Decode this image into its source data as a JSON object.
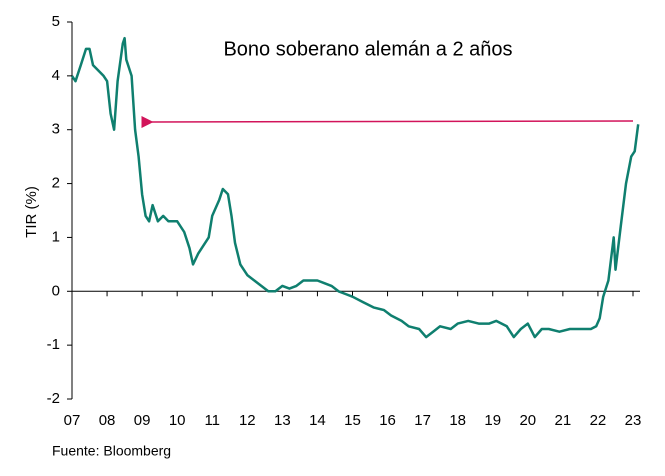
{
  "chart_data": {
    "type": "line",
    "title": "Bono soberano alemán a 2 años",
    "ylabel": "TIR (%)",
    "source": "Fuente: Bloomberg",
    "x": [
      2007.0,
      2007.1,
      2007.25,
      2007.4,
      2007.5,
      2007.6,
      2007.75,
      2007.9,
      2008.0,
      2008.1,
      2008.2,
      2008.3,
      2008.45,
      2008.5,
      2008.55,
      2008.7,
      2008.8,
      2008.9,
      2009.0,
      2009.1,
      2009.2,
      2009.3,
      2009.45,
      2009.6,
      2009.75,
      2009.9,
      2010.0,
      2010.2,
      2010.35,
      2010.45,
      2010.6,
      2010.8,
      2010.9,
      2011.0,
      2011.2,
      2011.3,
      2011.45,
      2011.55,
      2011.65,
      2011.8,
      2012.0,
      2012.2,
      2012.4,
      2012.6,
      2012.8,
      2013.0,
      2013.2,
      2013.4,
      2013.6,
      2013.8,
      2014.0,
      2014.2,
      2014.4,
      2014.6,
      2014.8,
      2015.0,
      2015.3,
      2015.6,
      2015.9,
      2016.1,
      2016.4,
      2016.6,
      2016.9,
      2017.1,
      2017.3,
      2017.5,
      2017.8,
      2018.0,
      2018.3,
      2018.6,
      2018.9,
      2019.1,
      2019.4,
      2019.6,
      2019.8,
      2020.0,
      2020.2,
      2020.4,
      2020.6,
      2020.9,
      2021.2,
      2021.5,
      2021.8,
      2021.95,
      2022.05,
      2022.15,
      2022.3,
      2022.45,
      2022.5,
      2022.65,
      2022.8,
      2022.95,
      2023.05,
      2023.15
    ],
    "series": [
      {
        "name": "TIR",
        "color": "#0f7f6f",
        "values": [
          4.0,
          3.9,
          4.2,
          4.5,
          4.5,
          4.2,
          4.1,
          4.0,
          3.9,
          3.3,
          3.0,
          3.9,
          4.6,
          4.7,
          4.3,
          4.0,
          3.0,
          2.5,
          1.8,
          1.4,
          1.3,
          1.6,
          1.3,
          1.4,
          1.3,
          1.3,
          1.3,
          1.1,
          0.8,
          0.5,
          0.7,
          0.9,
          1.0,
          1.4,
          1.7,
          1.9,
          1.8,
          1.4,
          0.9,
          0.5,
          0.3,
          0.2,
          0.1,
          0.0,
          0.0,
          0.1,
          0.05,
          0.1,
          0.2,
          0.2,
          0.2,
          0.15,
          0.1,
          0.0,
          -0.05,
          -0.1,
          -0.2,
          -0.3,
          -0.35,
          -0.45,
          -0.55,
          -0.65,
          -0.7,
          -0.85,
          -0.75,
          -0.65,
          -0.7,
          -0.6,
          -0.55,
          -0.6,
          -0.6,
          -0.55,
          -0.65,
          -0.85,
          -0.7,
          -0.6,
          -0.85,
          -0.7,
          -0.7,
          -0.75,
          -0.7,
          -0.7,
          -0.7,
          -0.65,
          -0.5,
          -0.1,
          0.2,
          1.0,
          0.4,
          1.2,
          2.0,
          2.5,
          2.6,
          3.1
        ]
      }
    ],
    "xlim": [
      2007,
      2023.2
    ],
    "ylim": [
      -2,
      5
    ],
    "yticks": [
      -2,
      -1,
      0,
      1,
      2,
      3,
      4,
      5
    ],
    "xticks": [
      {
        "value": 2007,
        "label": "07"
      },
      {
        "value": 2008,
        "label": "08"
      },
      {
        "value": 2009,
        "label": "09"
      },
      {
        "value": 2010,
        "label": "10"
      },
      {
        "value": 2011,
        "label": "11"
      },
      {
        "value": 2012,
        "label": "12"
      },
      {
        "value": 2013,
        "label": "13"
      },
      {
        "value": 2014,
        "label": "14"
      },
      {
        "value": 2015,
        "label": "15"
      },
      {
        "value": 2016,
        "label": "16"
      },
      {
        "value": 2017,
        "label": "17"
      },
      {
        "value": 2018,
        "label": "18"
      },
      {
        "value": 2019,
        "label": "19"
      },
      {
        "value": 2020,
        "label": "20"
      },
      {
        "value": 2021,
        "label": "21"
      },
      {
        "value": 2022,
        "label": "22"
      },
      {
        "value": 2023,
        "label": "23"
      }
    ]
  }
}
